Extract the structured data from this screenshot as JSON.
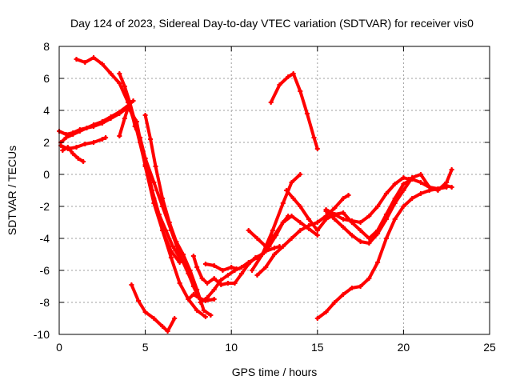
{
  "chart_data": {
    "type": "scatter",
    "title": "Day 124 of 2023, Sidereal Day-to-day VTEC variation (SDTVAR) for receiver vis0",
    "xlabel": "GPS time / hours",
    "ylabel": "SDTVAR / TECUs",
    "xlim": [
      0,
      25
    ],
    "ylim": [
      -10,
      8
    ],
    "xticks": [
      "0",
      "5",
      "10",
      "15",
      "20",
      "25"
    ],
    "yticks": [
      "-10",
      "-8",
      "-6",
      "-4",
      "-2",
      "0",
      "2",
      "4",
      "6",
      "8"
    ],
    "grid": true,
    "color": "#ff0000",
    "series": [
      {
        "x": [
          0,
          0.4,
          0.8,
          1.2,
          1.6,
          2.0,
          2.5,
          3.0,
          3.5,
          4.0,
          4.3
        ],
        "y": [
          2.7,
          2.5,
          2.6,
          2.8,
          2.9,
          3.1,
          3.3,
          3.6,
          3.9,
          4.3,
          4.6
        ]
      },
      {
        "x": [
          0.1,
          0.4,
          0.8,
          1.2,
          1.6,
          2.0,
          2.5,
          3.0,
          3.5,
          4.0,
          4.5,
          5.0,
          5.5,
          6.0,
          6.5,
          7.0
        ],
        "y": [
          2.0,
          2.3,
          2.5,
          2.7,
          2.9,
          3.0,
          3.2,
          3.5,
          3.8,
          4.2,
          3.3,
          0.5,
          -1.8,
          -3.5,
          -4.8,
          -5.5
        ]
      },
      {
        "x": [
          0.2,
          0.5,
          0.8,
          1.1,
          1.4
        ],
        "y": [
          1.5,
          1.7,
          1.3,
          1.0,
          0.8
        ]
      },
      {
        "x": [
          0.1,
          0.5,
          1.0,
          1.5,
          2.0,
          2.5,
          2.7
        ],
        "y": [
          1.8,
          1.6,
          1.7,
          1.9,
          2.0,
          2.2,
          2.3
        ]
      },
      {
        "x": [
          1.0,
          1.5,
          2.0,
          2.5,
          3.0,
          3.5,
          4.0,
          4.5,
          5.0,
          5.5,
          6.0,
          6.5,
          7.0,
          7.5,
          8.0,
          8.5
        ],
        "y": [
          7.2,
          7.0,
          7.3,
          6.9,
          6.3,
          5.7,
          4.5,
          2.8,
          0.6,
          -1.5,
          -3.5,
          -5.2,
          -6.8,
          -7.8,
          -8.5,
          -8.9
        ]
      },
      {
        "x": [
          3.5,
          3.8,
          4.1,
          4.4,
          4.7,
          5.0,
          5.4,
          5.8,
          6.2,
          6.6,
          7.0,
          7.4,
          7.8,
          8.2
        ],
        "y": [
          2.4,
          3.5,
          4.5,
          3.0,
          2.3,
          1.0,
          -1.0,
          -2.5,
          -3.5,
          -4.5,
          -5.2,
          -5.8,
          -7.0,
          -7.8
        ]
      },
      {
        "x": [
          3.5,
          3.8,
          4.1,
          4.4,
          4.7,
          5.0,
          5.5,
          6.0,
          6.5,
          7.0,
          7.5,
          8.0
        ],
        "y": [
          6.3,
          5.5,
          4.5,
          3.3,
          2.0,
          1.0,
          -0.5,
          -2.0,
          -3.5,
          -5.0,
          -6.2,
          -7.5
        ]
      },
      {
        "x": [
          5.0,
          5.3,
          5.6,
          6.0,
          6.4,
          6.8,
          7.2,
          7.6,
          8.0,
          8.4,
          8.8
        ],
        "y": [
          3.7,
          2.2,
          0.5,
          -1.5,
          -3.0,
          -4.2,
          -5.0,
          -6.0,
          -7.2,
          -8.5,
          -8.8
        ]
      },
      {
        "x": [
          4.2,
          4.6,
          5.0,
          5.5,
          6.0,
          6.3,
          6.7
        ],
        "y": [
          -6.9,
          -7.9,
          -8.6,
          -9.0,
          -9.5,
          -9.8,
          -9.0
        ]
      },
      {
        "x": [
          7.8,
          8.0,
          8.3,
          8.6,
          9.0,
          9.4,
          9.8,
          10.2,
          10.6,
          11.0,
          11.4,
          11.8,
          12.2,
          12.6,
          13.0,
          13.3
        ],
        "y": [
          -5.1,
          -5.8,
          -6.5,
          -6.8,
          -6.5,
          -6.9,
          -6.8,
          -6.8,
          -6.2,
          -5.6,
          -5.2,
          -5.0,
          -4.5,
          -3.8,
          -3.0,
          -2.6
        ]
      },
      {
        "x": [
          8.2,
          8.6,
          9.0,
          9.4,
          9.8,
          10.2,
          10.6,
          11.0,
          11.5,
          12.0,
          12.5,
          12.8
        ],
        "y": [
          -8.0,
          -7.7,
          -7.2,
          -6.6,
          -6.3,
          -6.0,
          -5.8,
          -5.5,
          -5.2,
          -4.8,
          -4.6,
          -4.5
        ]
      },
      {
        "x": [
          8.5,
          9.0,
          9.5,
          10.0,
          10.3
        ],
        "y": [
          -5.6,
          -5.7,
          -6.0,
          -5.8,
          -5.9
        ]
      },
      {
        "x": [
          7.5,
          7.8,
          8.1,
          8.5,
          9.0
        ],
        "y": [
          -7.8,
          -7.5,
          -7.7,
          -7.9,
          -7.8
        ]
      },
      {
        "x": [
          12.3,
          12.8,
          13.3,
          13.6,
          14.0,
          14.4,
          14.8,
          15.0
        ],
        "y": [
          4.5,
          5.6,
          6.1,
          6.3,
          5.2,
          3.8,
          2.3,
          1.6
        ]
      },
      {
        "x": [
          11.2,
          11.8,
          12.4,
          13.0,
          13.5,
          14.0
        ],
        "y": [
          -6.0,
          -5.0,
          -3.5,
          -1.8,
          -0.5,
          0.0
        ]
      },
      {
        "x": [
          11.5,
          12.0,
          12.5,
          13.0,
          13.5,
          14.0,
          14.5,
          15.0,
          15.5,
          16.0,
          16.5,
          16.8
        ],
        "y": [
          -6.3,
          -5.8,
          -5.0,
          -4.5,
          -4.0,
          -3.5,
          -3.2,
          -3.0,
          -2.6,
          -2.1,
          -1.5,
          -1.3
        ]
      },
      {
        "x": [
          11.0,
          11.5,
          12.0,
          12.5,
          13.0,
          13.5,
          14.0,
          14.5,
          15.0
        ],
        "y": [
          -3.5,
          -4.0,
          -4.5,
          -3.8,
          -3.0,
          -2.6,
          -3.0,
          -3.4,
          -3.8
        ]
      },
      {
        "x": [
          13.2,
          13.6,
          14.0,
          14.5,
          15.0,
          15.5,
          16.0,
          16.5,
          17.0,
          17.5,
          18.0,
          18.5,
          19.0,
          19.5,
          20.0,
          20.5,
          21.0,
          21.5,
          22.0,
          22.5,
          22.8
        ],
        "y": [
          -1.0,
          -1.5,
          -2.0,
          -2.8,
          -3.5,
          -2.8,
          -2.5,
          -2.4,
          -3.0,
          -3.5,
          -4.0,
          -3.5,
          -2.5,
          -1.5,
          -0.6,
          -0.3,
          -0.5,
          -0.8,
          -0.9,
          -0.7,
          -0.8
        ]
      },
      {
        "x": [
          15.5,
          16.0,
          16.5,
          17.0,
          17.5,
          18.0,
          18.5,
          19.0,
          19.5,
          20.0,
          20.5,
          21.0,
          21.5,
          22.0,
          22.5,
          22.8
        ],
        "y": [
          -2.3,
          -2.8,
          -3.3,
          -3.8,
          -4.2,
          -4.3,
          -3.7,
          -2.8,
          -1.8,
          -1.0,
          -0.2,
          0.0,
          -0.8,
          -1.0,
          -0.5,
          0.3
        ]
      },
      {
        "x": [
          15.5,
          16.0,
          16.5,
          17.0,
          17.5,
          18.0,
          18.5,
          19.0,
          19.5,
          20.0,
          20.3
        ],
        "y": [
          -2.2,
          -2.5,
          -2.8,
          -2.9,
          -3.0,
          -2.6,
          -2.0,
          -1.2,
          -0.6,
          -0.2,
          -0.3
        ]
      },
      {
        "x": [
          15.0,
          15.5,
          16.0,
          16.5,
          17.0,
          17.5,
          18.0,
          18.5,
          19.0,
          19.5,
          20.0,
          20.5,
          21.0,
          21.5,
          22.0,
          22.5
        ],
        "y": [
          -9.0,
          -8.6,
          -8.0,
          -7.5,
          -7.1,
          -7.0,
          -6.5,
          -5.5,
          -4.0,
          -2.8,
          -2.0,
          -1.5,
          -1.2,
          -1.0,
          -0.9,
          -0.8
        ]
      }
    ]
  }
}
